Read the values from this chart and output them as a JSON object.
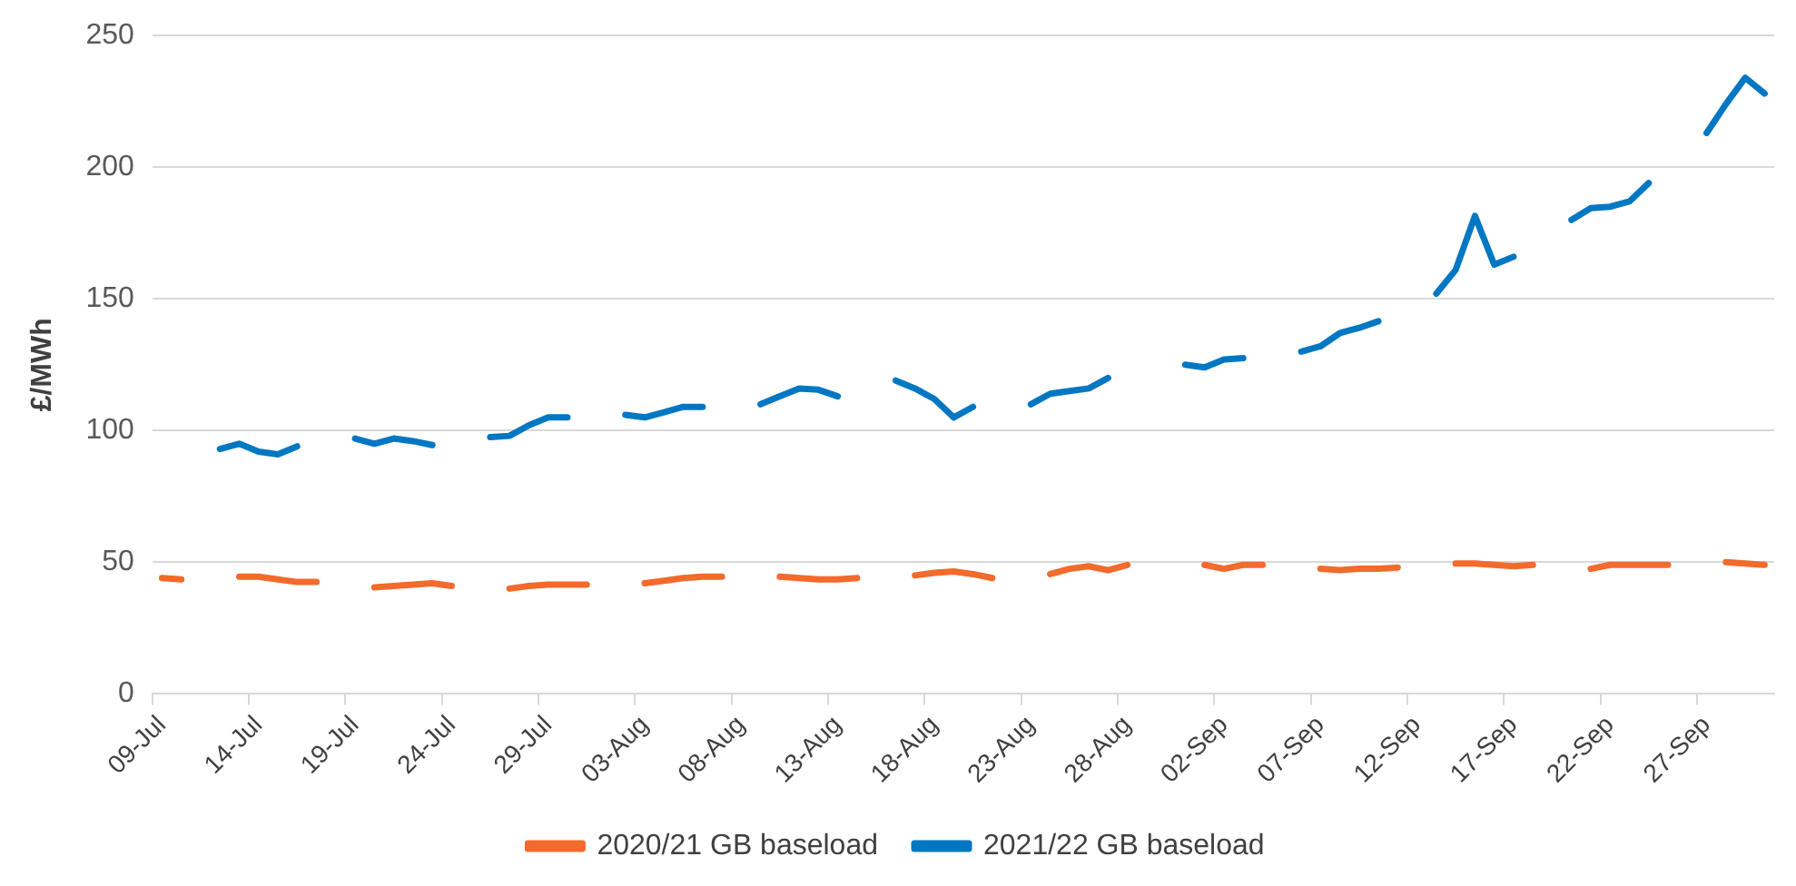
{
  "chart_data": {
    "type": "line",
    "ylabel": "£/MWh",
    "ylim": [
      0,
      250
    ],
    "yticks": [
      0,
      50,
      100,
      150,
      200,
      250
    ],
    "grid": "y",
    "legend": "bottom",
    "marker": "none",
    "line_style": "solid",
    "categories": [
      "09-Jul",
      null,
      null,
      null,
      null,
      "14-Jul",
      null,
      null,
      null,
      null,
      "19-Jul",
      null,
      null,
      null,
      null,
      "24-Jul",
      null,
      null,
      null,
      null,
      "29-Jul",
      null,
      null,
      null,
      null,
      "03-Aug",
      null,
      null,
      null,
      null,
      "08-Aug",
      null,
      null,
      null,
      null,
      "13-Aug",
      null,
      null,
      null,
      null,
      "18-Aug",
      null,
      null,
      null,
      null,
      "23-Aug",
      null,
      null,
      null,
      null,
      "28-Aug",
      null,
      null,
      null,
      null,
      "02-Sep",
      null,
      null,
      null,
      null,
      "07-Sep",
      null,
      null,
      null,
      null,
      "12-Sep",
      null,
      null,
      null,
      null,
      "17-Sep",
      null,
      null,
      null,
      null,
      "22-Sep",
      null,
      null,
      null,
      null,
      "27-Sep",
      null,
      null,
      null
    ],
    "series": [
      {
        "name": "2020/21 GB baseload",
        "color": "#f26a2c",
        "values": [
          44,
          43.5,
          null,
          null,
          44.5,
          44.5,
          43.5,
          42.5,
          42.5,
          null,
          null,
          40.5,
          41,
          41.5,
          42,
          41,
          null,
          null,
          40,
          41,
          41.5,
          41.5,
          41.5,
          null,
          null,
          42,
          43,
          44,
          44.5,
          44.5,
          null,
          null,
          44.5,
          44,
          43.5,
          43.5,
          44,
          null,
          null,
          45,
          46,
          46.5,
          45.5,
          44,
          null,
          null,
          45.5,
          47.5,
          48.5,
          47,
          49,
          null,
          null,
          null,
          49,
          47.5,
          49,
          49,
          null,
          null,
          47.5,
          47,
          47.5,
          47.5,
          48,
          null,
          null,
          49.5,
          49.5,
          49,
          48.5,
          49,
          null,
          null,
          47.5,
          49,
          49,
          49,
          49,
          null,
          null,
          50,
          49.5,
          49
        ]
      },
      {
        "name": "2021/22 GB baseload",
        "color": "#0077c2",
        "values": [
          null,
          null,
          null,
          93,
          95,
          92,
          91,
          94,
          null,
          null,
          97,
          95,
          97,
          96,
          94.5,
          null,
          null,
          97.5,
          98,
          102,
          105,
          105,
          null,
          null,
          106,
          105,
          107,
          109,
          109,
          null,
          null,
          110,
          113,
          116,
          115.5,
          113,
          null,
          null,
          119,
          116,
          112,
          105,
          109,
          null,
          null,
          110,
          114,
          115,
          116,
          120,
          null,
          null,
          null,
          125,
          124,
          127,
          127.5,
          null,
          null,
          130,
          132,
          137,
          139,
          141.5,
          null,
          null,
          152,
          161,
          181.5,
          163,
          166,
          null,
          null,
          180,
          184.5,
          185,
          187,
          194,
          null,
          null,
          213,
          224,
          234,
          228
        ]
      }
    ]
  }
}
